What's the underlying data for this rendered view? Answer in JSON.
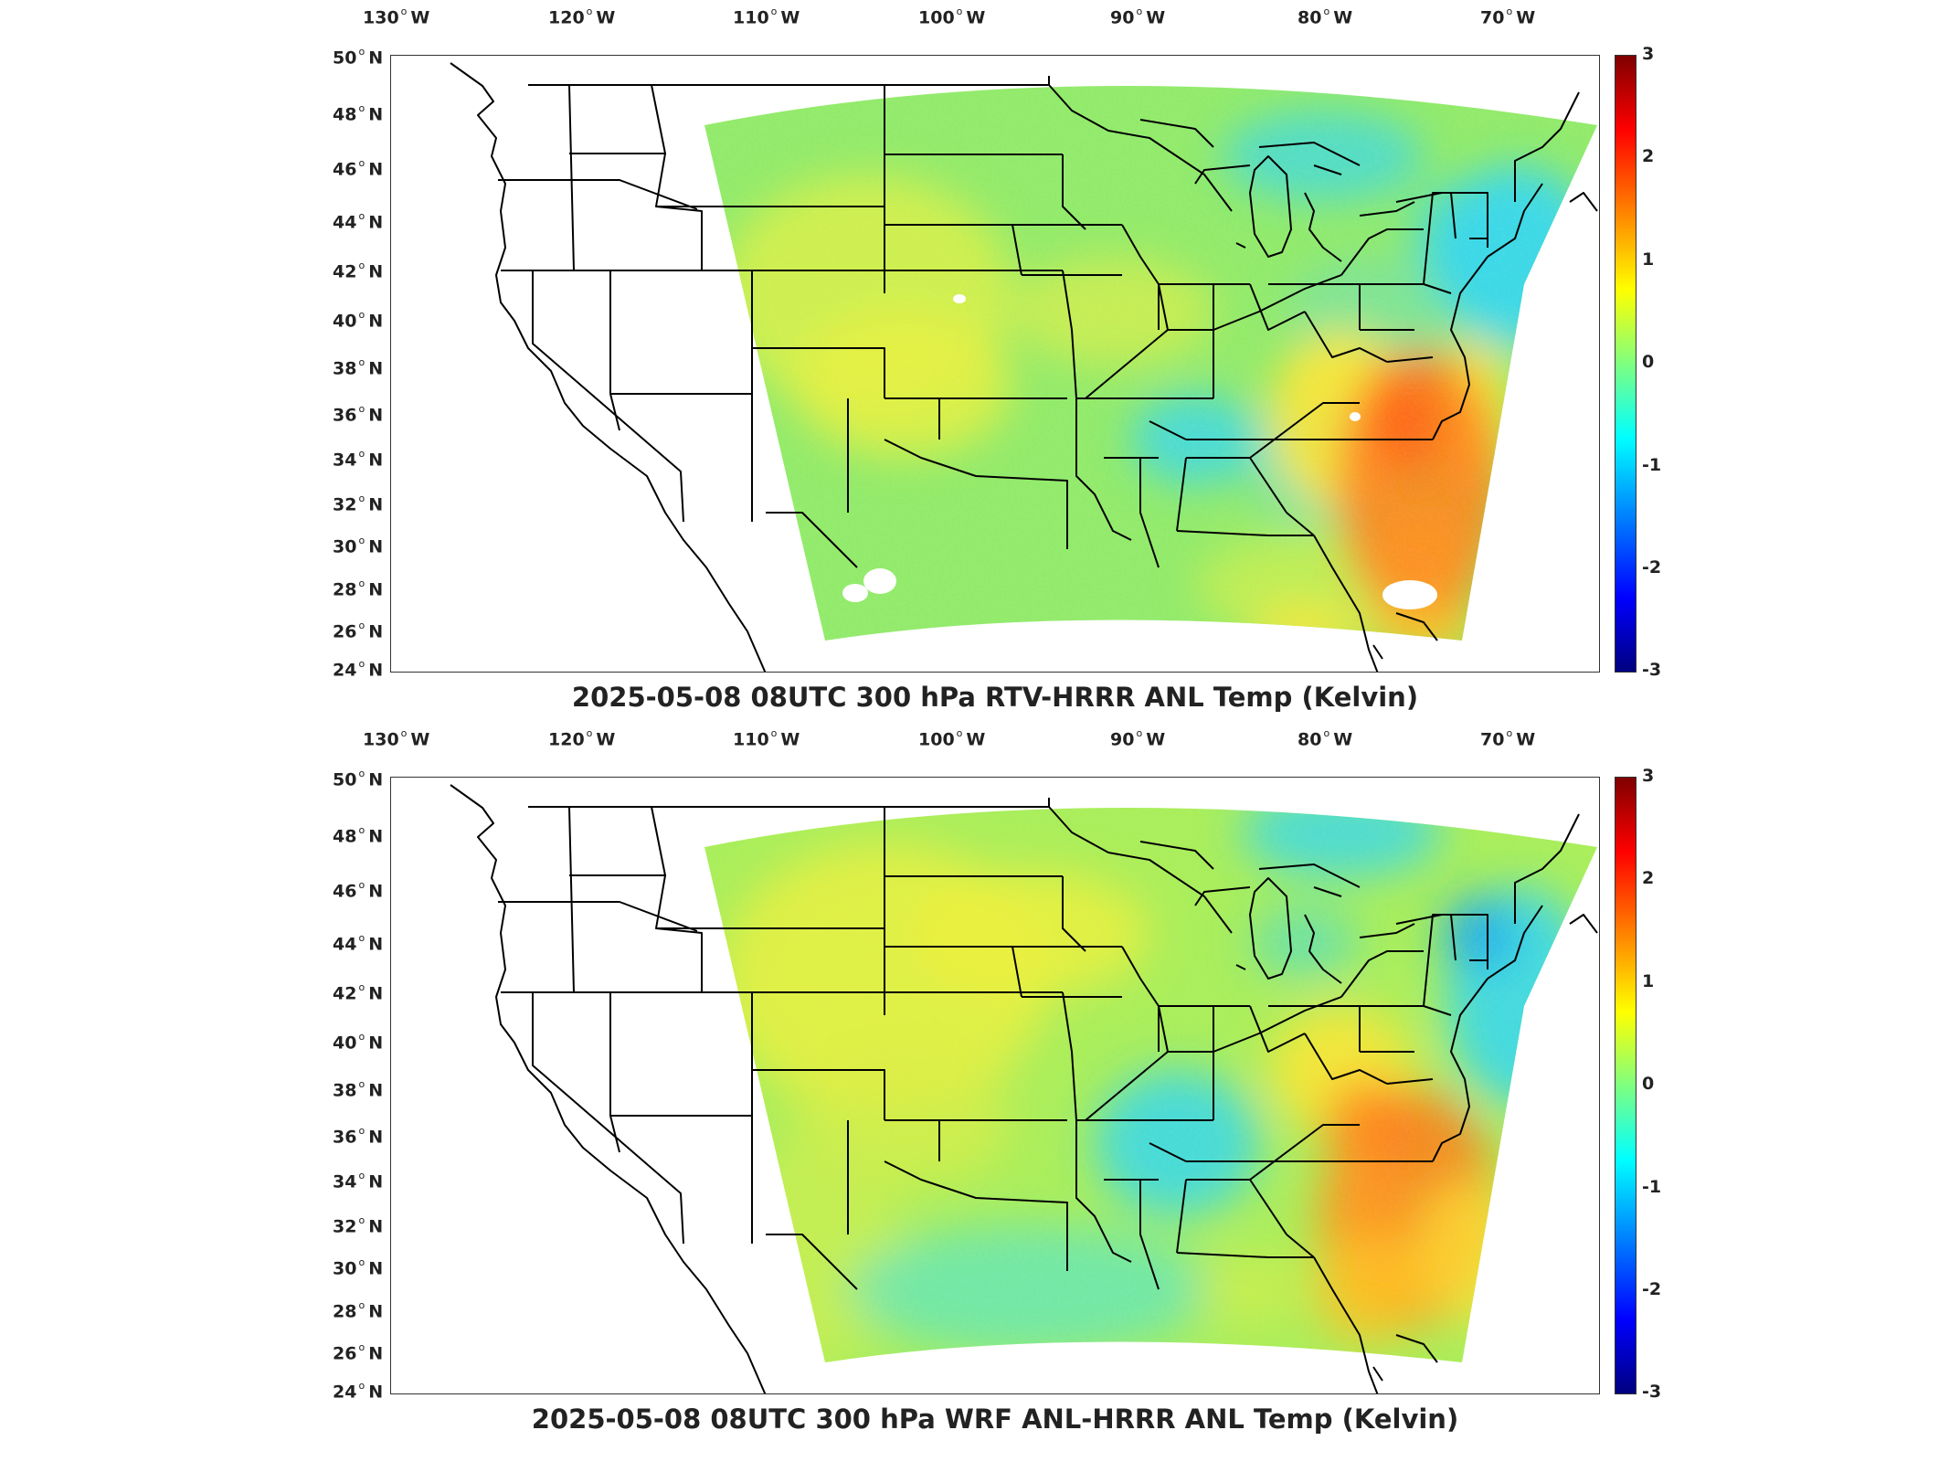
{
  "panels": [
    {
      "title": "2025-05-08 08UTC 300 hPa RTV-HRRR ANL Temp (Kelvin)",
      "variant": "rtv",
      "lon_labels": [
        {
          "num": "130",
          "hem": "W"
        },
        {
          "num": "120",
          "hem": "W"
        },
        {
          "num": "110",
          "hem": "W"
        },
        {
          "num": "100",
          "hem": "W"
        },
        {
          "num": "90",
          "hem": "W"
        },
        {
          "num": "80",
          "hem": "W"
        },
        {
          "num": "70",
          "hem": "W"
        }
      ],
      "lat_labels": [
        {
          "num": "50",
          "hem": "N"
        },
        {
          "num": "48",
          "hem": "N"
        },
        {
          "num": "46",
          "hem": "N"
        },
        {
          "num": "44",
          "hem": "N"
        },
        {
          "num": "42",
          "hem": "N"
        },
        {
          "num": "40",
          "hem": "N"
        },
        {
          "num": "38",
          "hem": "N"
        },
        {
          "num": "36",
          "hem": "N"
        },
        {
          "num": "34",
          "hem": "N"
        },
        {
          "num": "32",
          "hem": "N"
        },
        {
          "num": "30",
          "hem": "N"
        },
        {
          "num": "28",
          "hem": "N"
        },
        {
          "num": "26",
          "hem": "N"
        },
        {
          "num": "24",
          "hem": "N"
        }
      ],
      "colorbar_ticks": [
        "3",
        "2",
        "1",
        "0",
        "-1",
        "-2",
        "-3"
      ]
    },
    {
      "title": "2025-05-08 08UTC 300 hPa WRF ANL-HRRR ANL Temp (Kelvin)",
      "variant": "wrf",
      "lon_labels": [
        {
          "num": "130",
          "hem": "W"
        },
        {
          "num": "120",
          "hem": "W"
        },
        {
          "num": "110",
          "hem": "W"
        },
        {
          "num": "100",
          "hem": "W"
        },
        {
          "num": "90",
          "hem": "W"
        },
        {
          "num": "80",
          "hem": "W"
        },
        {
          "num": "70",
          "hem": "W"
        }
      ],
      "lat_labels": [
        {
          "num": "50",
          "hem": "N"
        },
        {
          "num": "48",
          "hem": "N"
        },
        {
          "num": "46",
          "hem": "N"
        },
        {
          "num": "44",
          "hem": "N"
        },
        {
          "num": "42",
          "hem": "N"
        },
        {
          "num": "40",
          "hem": "N"
        },
        {
          "num": "38",
          "hem": "N"
        },
        {
          "num": "36",
          "hem": "N"
        },
        {
          "num": "34",
          "hem": "N"
        },
        {
          "num": "32",
          "hem": "N"
        },
        {
          "num": "30",
          "hem": "N"
        },
        {
          "num": "28",
          "hem": "N"
        },
        {
          "num": "26",
          "hem": "N"
        },
        {
          "num": "24",
          "hem": "N"
        }
      ],
      "colorbar_ticks": [
        "3",
        "2",
        "1",
        "0",
        "-1",
        "-2",
        "-3"
      ]
    }
  ],
  "colors": {
    "field_base": "#8fea6a",
    "cold": "#33d6f0",
    "warm": "#ffe533",
    "hot": "#ff7a1a"
  }
}
